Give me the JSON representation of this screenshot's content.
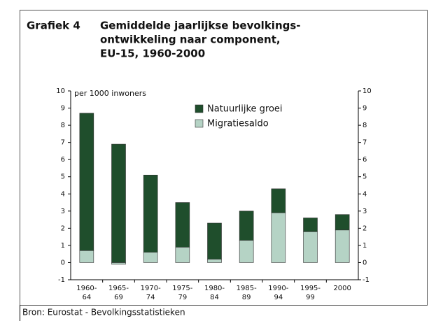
{
  "chart_data": {
    "type": "bar",
    "stacked": true,
    "label": "Grafiek 4",
    "title": [
      "Gemiddelde jaarlijkse bevolkings-",
      "ontwikkeling naar component,",
      "EU-15, 1960-2000"
    ],
    "y_axis_label": "per 1000 inwoners",
    "source": "Bron: Eurostat -  Bevolkingsstatistieken",
    "categories": [
      "1960-64",
      "1965-69",
      "1970-74",
      "1975-79",
      "1980-84",
      "1985-89",
      "1990-94",
      "1995-99",
      "2000"
    ],
    "series": [
      {
        "name": "Migratiesaldo",
        "color": "#b5d3c5",
        "values": [
          0.7,
          -0.1,
          0.6,
          0.9,
          0.2,
          1.3,
          2.9,
          1.8,
          1.9
        ]
      },
      {
        "name": "Natuurlijke groei",
        "color": "#1f4e2c",
        "values": [
          8.0,
          6.9,
          4.5,
          2.6,
          2.1,
          1.7,
          1.4,
          0.8,
          0.9
        ]
      }
    ],
    "legend_order": [
      1,
      0
    ],
    "ylim": [
      -1,
      10
    ],
    "yticks": [
      -1,
      0,
      1,
      2,
      3,
      4,
      5,
      6,
      7,
      8,
      9,
      10
    ],
    "y2lim": [
      -1,
      10
    ],
    "y2ticks": [
      -1,
      0,
      1,
      2,
      3,
      4,
      5,
      6,
      7,
      8,
      9,
      10
    ],
    "grid": false
  }
}
